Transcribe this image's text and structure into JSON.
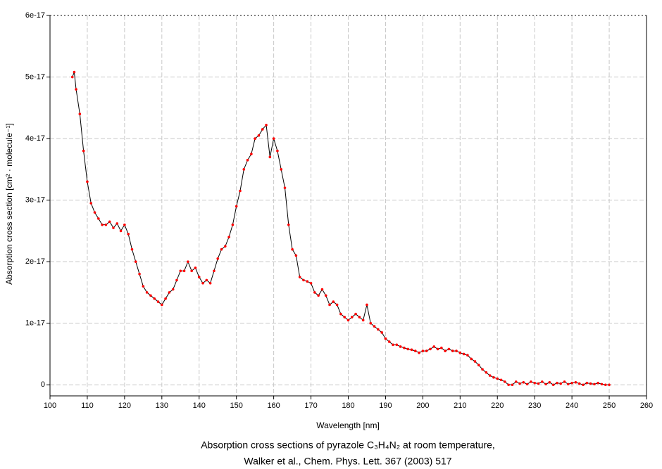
{
  "chart_data": {
    "type": "line",
    "title": "Absorption cross sections of pyrazole C₃H₄N₂ at room temperature,",
    "subtitle": "Walker et al., Chem. Phys. Lett. 367 (2003) 517",
    "x_label": "Wavelength [nm]",
    "y_label": "Absorption cross section [cm² · molecule⁻¹]",
    "xlim": [
      100,
      260
    ],
    "xticks": [
      100,
      110,
      120,
      130,
      140,
      150,
      160,
      170,
      180,
      190,
      200,
      210,
      220,
      230,
      240,
      250,
      260
    ],
    "ylim": [
      -1.8e-18,
      6e-17
    ],
    "yticks": [
      0,
      {
        "value": 1e-17,
        "label": "1e-17"
      },
      {
        "value": 2e-17,
        "label": "2e-17"
      },
      {
        "value": 3e-17,
        "label": "3e-17"
      },
      {
        "value": 4e-17,
        "label": "4e-17"
      },
      {
        "value": 5e-17,
        "label": "5e-17"
      },
      {
        "value": 6e-17,
        "label": "6e-17"
      }
    ],
    "grid": true,
    "x": [
      106,
      106.5,
      107,
      108,
      109,
      110,
      111,
      112,
      113,
      114,
      115,
      116,
      117,
      118,
      119,
      120,
      121,
      122,
      123,
      124,
      125,
      126,
      127,
      128,
      129,
      130,
      131,
      132,
      133,
      134,
      135,
      136,
      137,
      138,
      139,
      140,
      141,
      142,
      143,
      144,
      145,
      146,
      147,
      148,
      149,
      150,
      151,
      152,
      153,
      154,
      155,
      156,
      157,
      158,
      159,
      160,
      161,
      162,
      163,
      164,
      165,
      166,
      167,
      168,
      169,
      170,
      171,
      172,
      173,
      174,
      175,
      176,
      177,
      178,
      179,
      180,
      181,
      182,
      183,
      184,
      185,
      186,
      187,
      188,
      189,
      190,
      191,
      192,
      193,
      194,
      195,
      196,
      197,
      198,
      199,
      200,
      201,
      202,
      203,
      204,
      205,
      206,
      207,
      208,
      209,
      210,
      211,
      212,
      213,
      214,
      215,
      216,
      217,
      218,
      219,
      220,
      221,
      222,
      223,
      224,
      225,
      226,
      227,
      228,
      229,
      230,
      231,
      232,
      233,
      234,
      235,
      236,
      237,
      238,
      239,
      240,
      241,
      242,
      243,
      244,
      245,
      246,
      247,
      248,
      249,
      250
    ],
    "series": [
      {
        "color": "#000000",
        "marker_color": "#ff0000",
        "values": [
          5e-17,
          5.08e-17,
          4.8e-17,
          4.4e-17,
          3.8e-17,
          3.3e-17,
          2.95e-17,
          2.8e-17,
          2.7e-17,
          2.6e-17,
          2.6e-17,
          2.65e-17,
          2.55e-17,
          2.62e-17,
          2.5e-17,
          2.6e-17,
          2.45e-17,
          2.2e-17,
          2e-17,
          1.8e-17,
          1.6e-17,
          1.5e-17,
          1.45e-17,
          1.4e-17,
          1.35e-17,
          1.3e-17,
          1.4e-17,
          1.5e-17,
          1.55e-17,
          1.7e-17,
          1.85e-17,
          1.85e-17,
          2e-17,
          1.85e-17,
          1.9e-17,
          1.75e-17,
          1.65e-17,
          1.7e-17,
          1.65e-17,
          1.85e-17,
          2.05e-17,
          2.2e-17,
          2.25e-17,
          2.4e-17,
          2.6e-17,
          2.9e-17,
          3.15e-17,
          3.5e-17,
          3.65e-17,
          3.75e-17,
          4e-17,
          4.05e-17,
          4.15e-17,
          4.22e-17,
          3.7e-17,
          4e-17,
          3.8e-17,
          3.5e-17,
          3.2e-17,
          2.6e-17,
          2.2e-17,
          2.1e-17,
          1.75e-17,
          1.7e-17,
          1.68e-17,
          1.65e-17,
          1.5e-17,
          1.45e-17,
          1.55e-17,
          1.45e-17,
          1.3e-17,
          1.35e-17,
          1.3e-17,
          1.15e-17,
          1.1e-17,
          1.05e-17,
          1.1e-17,
          1.15e-17,
          1.1e-17,
          1.05e-17,
          1.3e-17,
          1e-17,
          9.5e-18,
          9e-18,
          8.5e-18,
          7.5e-18,
          7e-18,
          6.5e-18,
          6.5e-18,
          6.2e-18,
          6e-18,
          5.8e-18,
          5.7e-18,
          5.5e-18,
          5.2e-18,
          5.5e-18,
          5.5e-18,
          5.8e-18,
          6.2e-18,
          5.8e-18,
          6e-18,
          5.5e-18,
          5.8e-18,
          5.5e-18,
          5.5e-18,
          5.2e-18,
          5e-18,
          4.8e-18,
          4.2e-18,
          3.8e-18,
          3.2e-18,
          2.5e-18,
          2e-18,
          1.5e-18,
          1.2e-18,
          1e-18,
          8e-19,
          5e-19,
          0,
          0,
          5e-19,
          2e-19,
          4e-19,
          1e-19,
          5e-19,
          3e-19,
          2e-19,
          5e-19,
          1e-19,
          4e-19,
          0,
          3e-19,
          2e-19,
          5e-19,
          1e-19,
          3e-19,
          4e-19,
          2e-19,
          0,
          3e-19,
          2e-19,
          1e-19,
          3e-19,
          1e-19,
          0,
          0
        ]
      }
    ]
  }
}
